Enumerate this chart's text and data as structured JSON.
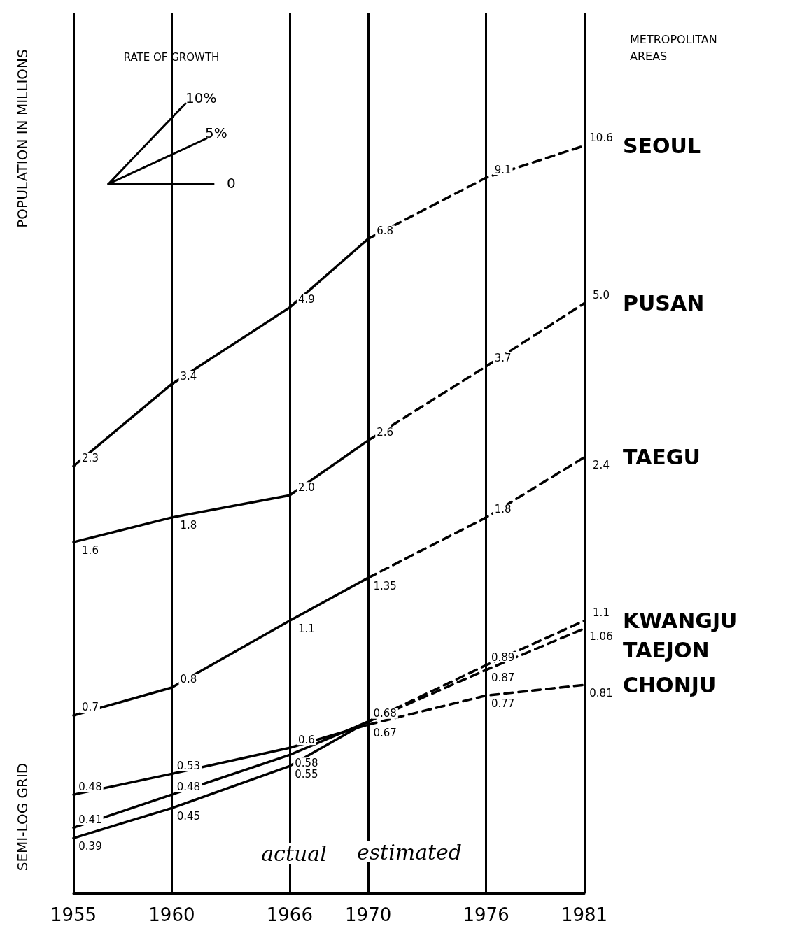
{
  "chart_data": {
    "type": "line",
    "ylabel": "POPULATION IN MILLIONS",
    "annotations": [
      "RATE OF GROWTH",
      "10%",
      "5%",
      "0",
      "actual",
      "estimated",
      "METROPOLITAN AREAS",
      "SEMI-LOG GRID"
    ],
    "xlim": [
      1955,
      1981
    ],
    "xticks": [
      1955,
      1960,
      1966,
      1970,
      1976,
      1981
    ],
    "ylim": [
      0.3,
      20
    ],
    "log": "y",
    "grid": "x",
    "tick_labels": "x",
    "series": [
      {
        "color": "#000000",
        "line_style": "solid",
        "x": [
          1955,
          1960,
          1966,
          1970
        ],
        "values": [
          2.3,
          3.4,
          4.9,
          6.8
        ],
        "value_labels": [
          "2.3",
          "3.4",
          "4.9",
          "6.8"
        ]
      },
      {
        "name": "SEOUL",
        "color": "#000000",
        "line_style": "dashed",
        "x": [
          1970,
          1976,
          1981
        ],
        "values": [
          6.8,
          9.1,
          10.6
        ],
        "value_labels": [
          null,
          "9.1",
          "10.6"
        ]
      },
      {
        "color": "#000000",
        "line_style": "solid",
        "x": [
          1955,
          1960,
          1966,
          1970
        ],
        "values": [
          1.6,
          1.8,
          2.0,
          2.6
        ],
        "value_labels": [
          "1.6",
          "1.8",
          "2.0",
          "2.6"
        ]
      },
      {
        "name": "PUSAN",
        "color": "#000000",
        "line_style": "dashed",
        "x": [
          1970,
          1976,
          1981
        ],
        "values": [
          2.6,
          3.7,
          5.0
        ],
        "value_labels": [
          null,
          "3.7",
          "5.0"
        ]
      },
      {
        "color": "#000000",
        "line_style": "solid",
        "x": [
          1955,
          1960,
          1966,
          1970
        ],
        "values": [
          0.7,
          0.8,
          1.1,
          1.35
        ],
        "value_labels": [
          "0.7",
          "0.8",
          "1.1",
          "1.35"
        ]
      },
      {
        "name": "TAEGU",
        "color": "#000000",
        "line_style": "dashed",
        "x": [
          1970,
          1976,
          1981
        ],
        "values": [
          1.35,
          1.8,
          2.4
        ],
        "value_labels": [
          null,
          "1.8",
          "2.4"
        ]
      },
      {
        "color": "#000000",
        "line_style": "solid",
        "x": [
          1955,
          1960,
          1966,
          1970
        ],
        "values": [
          0.39,
          0.45,
          0.55,
          0.68
        ],
        "value_labels": [
          "0.39",
          "0.45",
          "0.55",
          null
        ]
      },
      {
        "name": "KWANGJU",
        "color": "#000000",
        "line_style": "dashed",
        "x": [
          1970,
          1976,
          1981
        ],
        "values": [
          0.68,
          0.89,
          1.1
        ],
        "value_labels": [
          null,
          "0.89",
          "1.1"
        ]
      },
      {
        "color": "#000000",
        "line_style": "solid",
        "x": [
          1955,
          1960,
          1966,
          1970
        ],
        "values": [
          0.41,
          0.48,
          0.58,
          0.68
        ],
        "value_labels": [
          "0.41",
          "0.48",
          "0.58",
          "0.68"
        ]
      },
      {
        "name": "TAEJON",
        "color": "#000000",
        "line_style": "dashed",
        "x": [
          1970,
          1976,
          1981
        ],
        "values": [
          0.68,
          0.87,
          1.06
        ],
        "value_labels": [
          null,
          "0.87",
          "1.06"
        ]
      },
      {
        "color": "#000000",
        "line_style": "solid",
        "x": [
          1955,
          1960,
          1966,
          1970
        ],
        "values": [
          0.48,
          0.53,
          0.6,
          0.67
        ],
        "value_labels": [
          "0.48",
          "0.53",
          "0.6",
          "0.67"
        ]
      },
      {
        "name": "CHONJU",
        "color": "#000000",
        "line_style": "dashed",
        "x": [
          1970,
          1976,
          1981
        ],
        "values": [
          0.67,
          0.77,
          0.81
        ],
        "value_labels": [
          null,
          "0.77",
          "0.81"
        ]
      }
    ]
  }
}
